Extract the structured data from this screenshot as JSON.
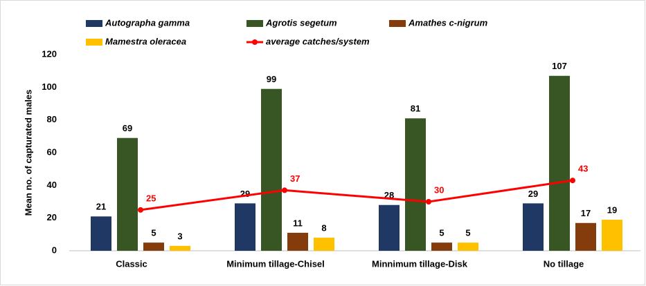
{
  "chart_data": {
    "type": "bar",
    "y_label": "Mean no. of capturated males",
    "categories": [
      "Classic",
      "Minimum tillage-Chisel",
      "Minnimum tillage-Disk",
      "No tillage"
    ],
    "series": [
      {
        "name": "Autographa gamma",
        "color": "#203864",
        "values": [
          21,
          29,
          28,
          29
        ]
      },
      {
        "name": "Agrotis segetum",
        "color": "#375623",
        "values": [
          69,
          99,
          81,
          107
        ]
      },
      {
        "name": "Amathes c-nigrum",
        "color": "#843c0c",
        "values": [
          5,
          11,
          5,
          17
        ]
      },
      {
        "name": "Mamestra oleracea",
        "color": "#ffc000",
        "values": [
          3,
          8,
          5,
          19
        ]
      },
      {
        "name": "average catches/system",
        "color": "#ff0000",
        "type": "line",
        "values": [
          25,
          37,
          30,
          43
        ]
      }
    ],
    "ylim": [
      0,
      120
    ],
    "yticks": [
      0,
      20,
      40,
      60,
      80,
      100,
      120
    ],
    "grid": false
  }
}
